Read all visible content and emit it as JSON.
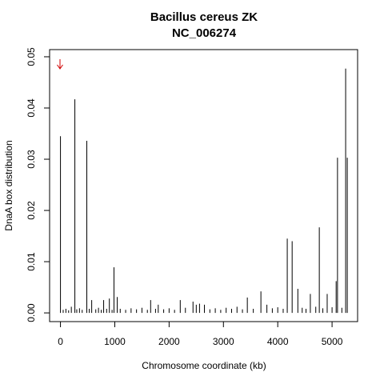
{
  "chart_data": {
    "type": "spike",
    "title": "Bacillus cereus ZK",
    "subtitle": "NC_006274",
    "x_label": "Chromosome coordinate (kb)",
    "y_label": "DnaA box distribution",
    "color": "#000000",
    "x": [
      0,
      50,
      100,
      150,
      200,
      265,
      300,
      350,
      400,
      485,
      530,
      575,
      650,
      700,
      750,
      795,
      850,
      900,
      950,
      985,
      1045,
      1100,
      1200,
      1300,
      1400,
      1500,
      1600,
      1660,
      1750,
      1800,
      1900,
      2000,
      2100,
      2205,
      2300,
      2440,
      2500,
      2560,
      2650,
      2750,
      2850,
      2950,
      3050,
      3150,
      3250,
      3350,
      3440,
      3550,
      3690,
      3800,
      3900,
      4000,
      4100,
      4175,
      4265,
      4370,
      4450,
      4520,
      4600,
      4700,
      4765,
      4830,
      4910,
      5000,
      5075,
      5100,
      5180,
      5250,
      5280
    ],
    "values": [
      0.0345,
      0.0006,
      0.0008,
      0.0005,
      0.0012,
      0.0417,
      0.0007,
      0.0009,
      0.0006,
      0.0336,
      0.0008,
      0.0025,
      0.0007,
      0.001,
      0.0006,
      0.0025,
      0.0008,
      0.0028,
      0.0006,
      0.0089,
      0.0031,
      0.0008,
      0.0006,
      0.0009,
      0.0007,
      0.001,
      0.0006,
      0.0025,
      0.0008,
      0.0016,
      0.0007,
      0.0009,
      0.0006,
      0.0025,
      0.001,
      0.0022,
      0.0016,
      0.0018,
      0.0016,
      0.0007,
      0.0009,
      0.0006,
      0.001,
      0.0008,
      0.0012,
      0.0007,
      0.003,
      0.0008,
      0.0042,
      0.0016,
      0.0009,
      0.0011,
      0.0008,
      0.0145,
      0.014,
      0.0047,
      0.001,
      0.0008,
      0.0037,
      0.0012,
      0.0167,
      0.0009,
      0.0037,
      0.0011,
      0.0062,
      0.0303,
      0.001,
      0.0477,
      0.0303
    ],
    "xlim": [
      -200,
      5470
    ],
    "xticks": [
      0,
      1000,
      2000,
      3000,
      4000,
      5000
    ],
    "ylim": [
      -0.0017,
      0.0514
    ],
    "yticks": [
      {
        "value": 0,
        "label": "0.00"
      },
      0.01,
      0.02,
      0.03,
      0.04,
      0.05
    ]
  }
}
